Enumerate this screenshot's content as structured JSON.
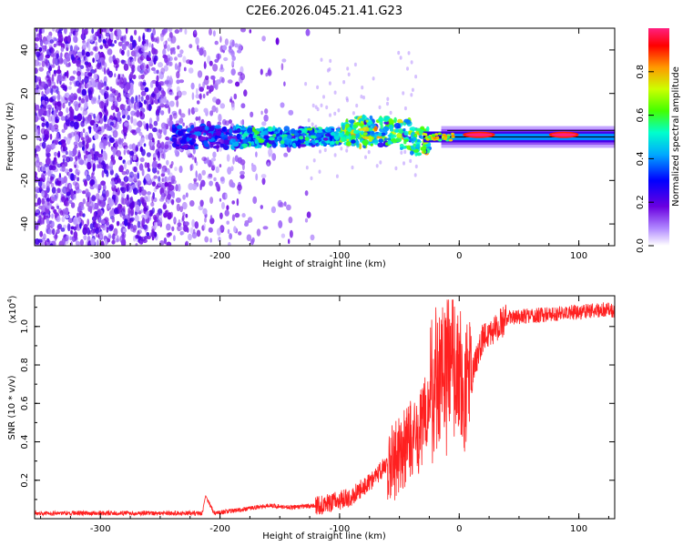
{
  "title": "C2E6.2026.045.21.41.G23",
  "chart_data": [
    {
      "type": "heatmap",
      "title": "C2E6.2026.045.21.41.G23",
      "xlabel": "Height of straight line (km)",
      "ylabel": "Frequency (Hz)",
      "xlim": [
        -355,
        130
      ],
      "ylim": [
        -50,
        50
      ],
      "xticks": [
        -300,
        -200,
        -100,
        0,
        100
      ],
      "yticks": [
        -40,
        -20,
        0,
        20,
        40
      ],
      "colorbar": {
        "label": "Normalized spectral amplitude",
        "range": [
          0,
          1
        ],
        "ticks": [
          0.0,
          0.2,
          0.4,
          0.6,
          0.8
        ],
        "colormap": [
          "#ffffff",
          "#9a66ff",
          "#6a00e0",
          "#0000ff",
          "#00ccff",
          "#00ff66",
          "#ffff00",
          "#ff8800",
          "#ff0000",
          "#ff1a8c"
        ]
      },
      "features": {
        "scatter_region_km": [
          -355,
          -120
        ],
        "main_trace_start_km": -240,
        "steady_line_start_km": -30,
        "steady_line_frequency_hz": 0,
        "peak_segments": [
          {
            "x_start": 3,
            "x_end": 30,
            "amplitude": 1.0
          },
          {
            "x_start": 75,
            "x_end": 100,
            "amplitude": 1.0
          }
        ]
      }
    },
    {
      "type": "line",
      "xlabel": "Height of straight line (km)",
      "ylabel": "SNR (10 * v/v)",
      "yscale_label": "(x10",
      "yscale_exponent": "4",
      "xlim": [
        -355,
        130
      ],
      "ylim": [
        0,
        1.16
      ],
      "xticks": [
        -300,
        -200,
        -100,
        0,
        100
      ],
      "yticks": [
        0.2,
        0.4,
        0.6,
        0.8,
        1.0
      ],
      "color": "#ff2020",
      "series": [
        {
          "name": "SNR",
          "x": [
            -355,
            -320,
            -280,
            -250,
            -215,
            -212,
            -205,
            -180,
            -160,
            -140,
            -120,
            -100,
            -90,
            -80,
            -70,
            -60,
            -50,
            -40,
            -30,
            -25,
            -20,
            -15,
            -10,
            -5,
            0,
            5,
            10,
            15,
            20,
            30,
            40,
            60,
            80,
            100,
            120,
            130
          ],
          "y": [
            0.03,
            0.03,
            0.03,
            0.03,
            0.03,
            0.12,
            0.03,
            0.05,
            0.07,
            0.06,
            0.07,
            0.1,
            0.12,
            0.17,
            0.22,
            0.3,
            0.35,
            0.42,
            0.5,
            0.65,
            0.7,
            0.8,
            0.85,
            0.9,
            0.8,
            0.7,
            0.72,
            0.85,
            0.95,
            1.0,
            1.05,
            1.06,
            1.07,
            1.08,
            1.09,
            1.09
          ]
        }
      ]
    }
  ]
}
